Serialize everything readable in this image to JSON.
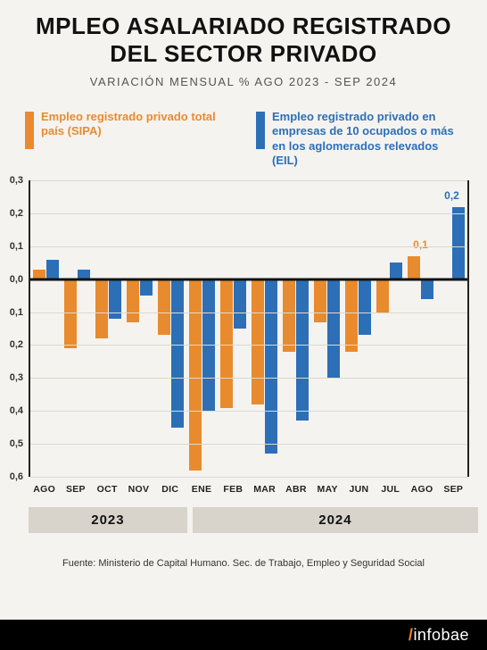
{
  "title": {
    "line1": "MPLEO ASALARIADO REGISTRADO",
    "line2": "DEL SECTOR PRIVADO",
    "fontsize": 26,
    "color": "#111111"
  },
  "subtitle": {
    "text": "VARIACIÓN MENSUAL % AGO 2023 - SEP 2024",
    "fontsize": 13,
    "color": "#555555"
  },
  "legend": {
    "series_a": {
      "label": "Empleo registrado privado total país (SIPA)",
      "color": "#e88b2e",
      "fontsize": 13
    },
    "series_b": {
      "label": "Empleo registrado privado en empresas de 10 ocupados o más en los aglomerados relevados (EIL)",
      "color": "#2d6fb7",
      "fontsize": 13
    }
  },
  "chart": {
    "type": "bar",
    "ylim": [
      -0.6,
      0.3
    ],
    "ytick_step": 0.1,
    "ytick_labels": [
      "0,3",
      "0,2",
      "0,1",
      "0,0",
      "0,1",
      "0,2",
      "0,3",
      "0,4",
      "0,5",
      "0,6"
    ],
    "background_color": "#f5f3ef",
    "grid_color": "#ddd8cf",
    "axis_color": "#222222",
    "zero_color": "#111111",
    "categories": [
      "AGO",
      "SEP",
      "OCT",
      "NOV",
      "DIC",
      "ENE",
      "FEB",
      "MAR",
      "ABR",
      "MAY",
      "JUN",
      "JUL",
      "AGO",
      "SEP"
    ],
    "series_a": {
      "color": "#e88b2e",
      "values": [
        0.03,
        -0.21,
        -0.18,
        -0.13,
        -0.17,
        -0.58,
        -0.39,
        -0.38,
        -0.22,
        -0.13,
        -0.22,
        -0.1,
        0.07,
        null
      ]
    },
    "series_b": {
      "color": "#2d6fb7",
      "values": [
        0.06,
        0.03,
        -0.12,
        -0.05,
        -0.45,
        -0.4,
        -0.15,
        -0.53,
        -0.43,
        -0.3,
        -0.17,
        0.05,
        -0.06,
        0.22
      ]
    },
    "callouts": [
      {
        "month_index": 12,
        "series": "a",
        "text": "0,1",
        "color": "#e88b2e"
      },
      {
        "month_index": 13,
        "series": "b",
        "text": "0,2",
        "color": "#2d6fb7"
      }
    ]
  },
  "years": {
    "segments": [
      {
        "label": "2023",
        "span": 5
      },
      {
        "label": "2024",
        "span": 9
      }
    ]
  },
  "source": {
    "text": "Fuente: Ministerio de Capital Humano. Sec. de Trabajo, Empleo y Seguridad Social",
    "fontsize": 11
  },
  "brand": {
    "name": "infobae",
    "accent": "#f58220"
  }
}
